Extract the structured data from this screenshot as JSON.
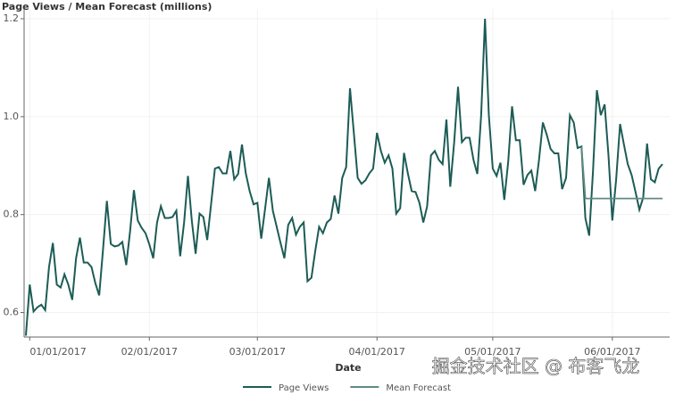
{
  "chart_data": {
    "type": "line",
    "y_label": "Page Views / Mean Forecast (millions)",
    "x_label": "Date",
    "watermark": "掘金技术社区 @ 布客飞龙",
    "x": [
      "12/31/2016",
      "01/01/2017",
      "01/02/2017",
      "01/03/2017",
      "01/04/2017",
      "01/05/2017",
      "01/06/2017",
      "01/07/2017",
      "01/08/2017",
      "01/09/2017",
      "01/10/2017",
      "01/11/2017",
      "01/12/2017",
      "01/13/2017",
      "01/14/2017",
      "01/15/2017",
      "01/16/2017",
      "01/17/2017",
      "01/18/2017",
      "01/19/2017",
      "01/20/2017",
      "01/21/2017",
      "01/22/2017",
      "01/23/2017",
      "01/24/2017",
      "01/25/2017",
      "01/26/2017",
      "01/27/2017",
      "01/28/2017",
      "01/29/2017",
      "01/30/2017",
      "01/31/2017",
      "02/01/2017",
      "02/02/2017",
      "02/03/2017",
      "02/04/2017",
      "02/05/2017",
      "02/06/2017",
      "02/07/2017",
      "02/08/2017",
      "02/09/2017",
      "02/10/2017",
      "02/11/2017",
      "02/12/2017",
      "02/13/2017",
      "02/14/2017",
      "02/15/2017",
      "02/16/2017",
      "02/17/2017",
      "02/18/2017",
      "02/19/2017",
      "02/20/2017",
      "02/21/2017",
      "02/22/2017",
      "02/23/2017",
      "02/24/2017",
      "02/25/2017",
      "02/26/2017",
      "02/27/2017",
      "02/28/2017",
      "03/01/2017",
      "03/02/2017",
      "03/03/2017",
      "03/04/2017",
      "03/05/2017",
      "03/06/2017",
      "03/07/2017",
      "03/08/2017",
      "03/09/2017",
      "03/10/2017",
      "03/11/2017",
      "03/12/2017",
      "03/13/2017",
      "03/14/2017",
      "03/15/2017",
      "03/16/2017",
      "03/17/2017",
      "03/18/2017",
      "03/19/2017",
      "03/20/2017",
      "03/21/2017",
      "03/22/2017",
      "03/23/2017",
      "03/24/2017",
      "03/25/2017",
      "03/26/2017",
      "03/27/2017",
      "03/28/2017",
      "03/29/2017",
      "03/30/2017",
      "03/31/2017",
      "04/01/2017",
      "04/02/2017",
      "04/03/2017",
      "04/04/2017",
      "04/05/2017",
      "04/06/2017",
      "04/07/2017",
      "04/08/2017",
      "04/09/2017",
      "04/10/2017",
      "04/11/2017",
      "04/12/2017",
      "04/13/2017",
      "04/14/2017",
      "04/15/2017",
      "04/16/2017",
      "04/17/2017",
      "04/18/2017",
      "04/19/2017",
      "04/20/2017",
      "04/21/2017",
      "04/22/2017",
      "04/23/2017",
      "04/24/2017",
      "04/25/2017",
      "04/26/2017",
      "04/27/2017",
      "04/28/2017",
      "04/29/2017",
      "04/30/2017",
      "05/01/2017",
      "05/02/2017",
      "05/03/2017",
      "05/04/2017",
      "05/05/2017",
      "05/06/2017",
      "05/07/2017",
      "05/08/2017",
      "05/09/2017",
      "05/10/2017",
      "05/11/2017",
      "05/12/2017",
      "05/13/2017",
      "05/14/2017",
      "05/15/2017",
      "05/16/2017",
      "05/17/2017",
      "05/18/2017",
      "05/19/2017",
      "05/20/2017",
      "05/21/2017",
      "05/22/2017",
      "05/23/2017",
      "05/24/2017",
      "05/25/2017",
      "05/26/2017",
      "05/27/2017",
      "05/28/2017",
      "05/29/2017",
      "05/30/2017",
      "05/31/2017",
      "06/01/2017",
      "06/02/2017",
      "06/03/2017",
      "06/04/2017",
      "06/05/2017",
      "06/06/2017",
      "06/07/2017",
      "06/08/2017",
      "06/09/2017",
      "06/10/2017",
      "06/11/2017",
      "06/12/2017",
      "06/13/2017",
      "06/14/2017"
    ],
    "series": [
      {
        "name": "Page Views",
        "color": "#1d5c56",
        "values": [
          0.553,
          0.657,
          0.602,
          0.611,
          0.616,
          0.605,
          0.693,
          0.742,
          0.657,
          0.651,
          0.678,
          0.657,
          0.626,
          0.711,
          0.753,
          0.702,
          0.702,
          0.693,
          0.66,
          0.635,
          0.729,
          0.828,
          0.74,
          0.735,
          0.737,
          0.744,
          0.697,
          0.766,
          0.85,
          0.788,
          0.773,
          0.762,
          0.739,
          0.711,
          0.784,
          0.817,
          0.793,
          0.793,
          0.795,
          0.808,
          0.715,
          0.784,
          0.879,
          0.788,
          0.72,
          0.802,
          0.795,
          0.748,
          0.821,
          0.894,
          0.897,
          0.884,
          0.884,
          0.93,
          0.872,
          0.883,
          0.943,
          0.884,
          0.848,
          0.821,
          0.824,
          0.751,
          0.812,
          0.875,
          0.808,
          0.775,
          0.742,
          0.711,
          0.779,
          0.793,
          0.759,
          0.775,
          0.784,
          0.664,
          0.671,
          0.726,
          0.775,
          0.762,
          0.784,
          0.791,
          0.839,
          0.802,
          0.875,
          0.897,
          1.058,
          0.967,
          0.875,
          0.863,
          0.87,
          0.884,
          0.894,
          0.967,
          0.93,
          0.906,
          0.921,
          0.894,
          0.802,
          0.813,
          0.926,
          0.884,
          0.848,
          0.846,
          0.824,
          0.784,
          0.817,
          0.921,
          0.93,
          0.912,
          0.903,
          0.994,
          0.857,
          0.948,
          1.061,
          0.948,
          0.957,
          0.957,
          0.912,
          0.883,
          1.003,
          1.2,
          1.003,
          0.894,
          0.879,
          0.906,
          0.83,
          0.908,
          1.021,
          0.952,
          0.952,
          0.861,
          0.881,
          0.89,
          0.848,
          0.912,
          0.988,
          0.963,
          0.934,
          0.925,
          0.925,
          0.852,
          0.875,
          1.003,
          0.988,
          0.936,
          0.939,
          0.793,
          0.757,
          0.89,
          1.054,
          1.003,
          1.025,
          0.921,
          0.788,
          0.872,
          0.985,
          0.943,
          0.903,
          0.881,
          0.846,
          0.81,
          0.835,
          0.945,
          0.872,
          0.866,
          0.894,
          0.903
        ]
      },
      {
        "name": "Mean Forecast",
        "color": "#5f8b82",
        "values": [
          null,
          null,
          null,
          null,
          null,
          null,
          null,
          null,
          null,
          null,
          null,
          null,
          null,
          null,
          null,
          null,
          null,
          null,
          null,
          null,
          null,
          null,
          null,
          null,
          null,
          null,
          null,
          null,
          null,
          null,
          null,
          null,
          null,
          null,
          null,
          null,
          null,
          null,
          null,
          null,
          null,
          null,
          null,
          null,
          null,
          null,
          null,
          null,
          null,
          null,
          null,
          null,
          null,
          null,
          null,
          null,
          null,
          null,
          null,
          null,
          null,
          null,
          null,
          null,
          null,
          null,
          null,
          null,
          null,
          null,
          null,
          null,
          null,
          null,
          null,
          null,
          null,
          null,
          null,
          null,
          null,
          null,
          null,
          null,
          null,
          null,
          null,
          null,
          null,
          null,
          null,
          null,
          null,
          null,
          null,
          null,
          null,
          null,
          null,
          null,
          null,
          null,
          null,
          null,
          null,
          null,
          null,
          null,
          null,
          null,
          null,
          null,
          null,
          null,
          null,
          null,
          null,
          null,
          null,
          null,
          null,
          null,
          null,
          null,
          null,
          null,
          null,
          null,
          null,
          null,
          null,
          null,
          null,
          null,
          null,
          null,
          null,
          null,
          null,
          null,
          null,
          null,
          null,
          null,
          0.939,
          0.833,
          0.833,
          0.833,
          0.833,
          0.833,
          0.833,
          0.833,
          0.833,
          0.833,
          0.833,
          0.833,
          0.833,
          0.833,
          0.833,
          0.833,
          0.833,
          0.833,
          0.833,
          0.833,
          0.833,
          0.833
        ]
      }
    ],
    "xlim": [
      "12/31/2016",
      "06/14/2017"
    ],
    "xticks": [
      "01/01/2017",
      "02/01/2017",
      "03/01/2017",
      "04/01/2017",
      "05/01/2017",
      "06/01/2017"
    ],
    "ylim": [
      0.55,
      1.22
    ],
    "yticks": [
      0.6,
      0.8,
      {
        "value": 1,
        "label": "1.0"
      },
      1.2
    ],
    "grid": true,
    "legend": "bottom"
  }
}
